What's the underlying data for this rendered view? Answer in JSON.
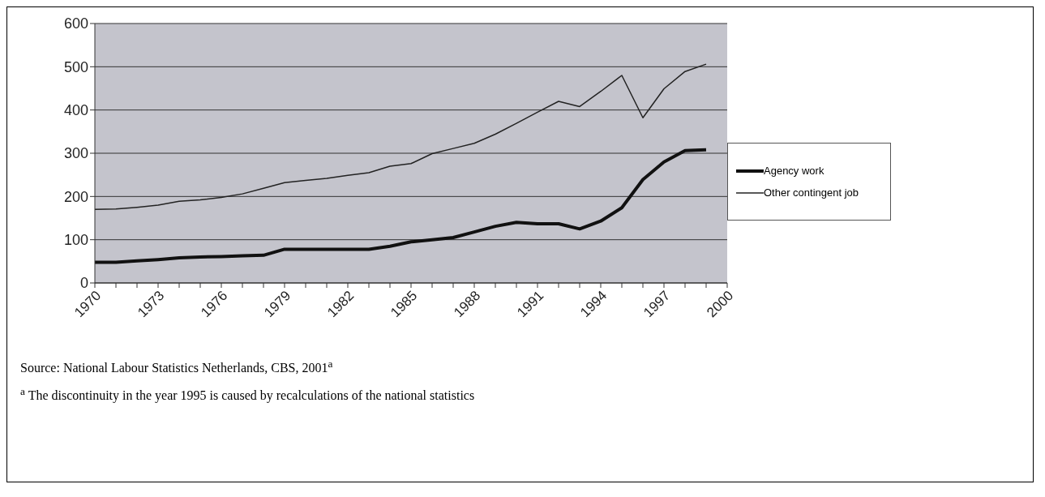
{
  "chart_data": {
    "type": "line",
    "categories": [
      "1970",
      null,
      null,
      "1973",
      null,
      null,
      "1976",
      null,
      null,
      "1979",
      null,
      null,
      "1982",
      null,
      null,
      "1985",
      null,
      null,
      "1988",
      null,
      null,
      "1991",
      null,
      null,
      "1994",
      null,
      null,
      "1997",
      null,
      null,
      "2000"
    ],
    "series": [
      {
        "name": "Agency work",
        "color": "#111111",
        "values": [
          48,
          48,
          51,
          54,
          58,
          60,
          61,
          63,
          64,
          78,
          78,
          78,
          78,
          78,
          85,
          95,
          100,
          105,
          118,
          131,
          140,
          137,
          137,
          125,
          143,
          174,
          239,
          280,
          306,
          308,
          null
        ]
      },
      {
        "name": "Other contingent job",
        "color": "#222222",
        "values": [
          170,
          171,
          175,
          180,
          189,
          192,
          198,
          206,
          219,
          232,
          237,
          242,
          249,
          255,
          270,
          276,
          299,
          311,
          323,
          344,
          369,
          395,
          420,
          408,
          443,
          480,
          382,
          449,
          489,
          506,
          null
        ]
      }
    ],
    "ylim": [
      0,
      600
    ],
    "yticks": [
      0,
      100,
      200,
      300,
      400,
      500,
      600
    ],
    "grid": "y",
    "legend": "right",
    "marker": "none",
    "line_style": "solid",
    "annotations": [
      "Source: National Labour Statistics Netherlands, CBS, 2001$^{a}$",
      "$^{a}$ The discontinuity in the year 1995 is caused by recalculations of the national statistics"
    ]
  }
}
